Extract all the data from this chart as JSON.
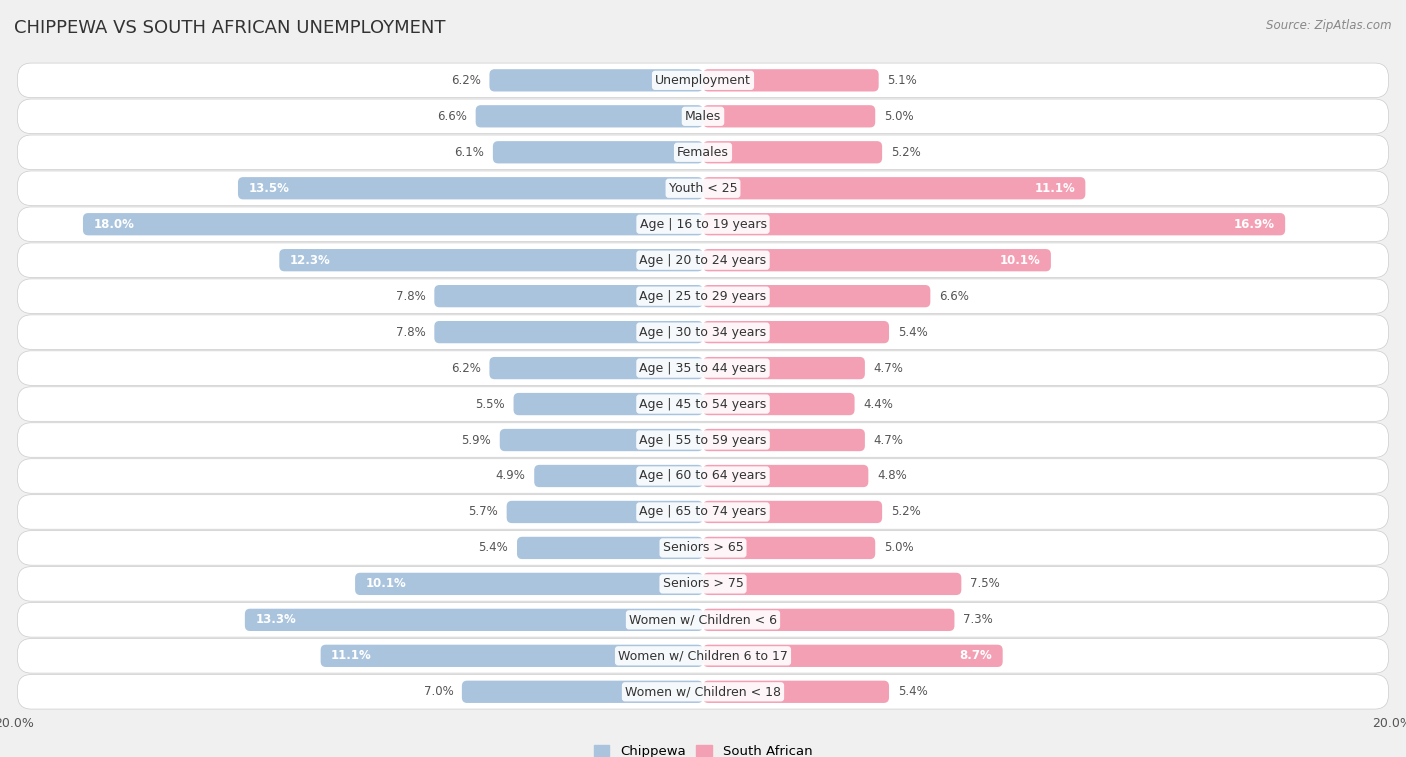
{
  "title": "CHIPPEWA VS SOUTH AFRICAN UNEMPLOYMENT",
  "source": "Source: ZipAtlas.com",
  "categories": [
    "Unemployment",
    "Males",
    "Females",
    "Youth < 25",
    "Age | 16 to 19 years",
    "Age | 20 to 24 years",
    "Age | 25 to 29 years",
    "Age | 30 to 34 years",
    "Age | 35 to 44 years",
    "Age | 45 to 54 years",
    "Age | 55 to 59 years",
    "Age | 60 to 64 years",
    "Age | 65 to 74 years",
    "Seniors > 65",
    "Seniors > 75",
    "Women w/ Children < 6",
    "Women w/ Children 6 to 17",
    "Women w/ Children < 18"
  ],
  "chippewa": [
    6.2,
    6.6,
    6.1,
    13.5,
    18.0,
    12.3,
    7.8,
    7.8,
    6.2,
    5.5,
    5.9,
    4.9,
    5.7,
    5.4,
    10.1,
    13.3,
    11.1,
    7.0
  ],
  "south_african": [
    5.1,
    5.0,
    5.2,
    11.1,
    16.9,
    10.1,
    6.6,
    5.4,
    4.7,
    4.4,
    4.7,
    4.8,
    5.2,
    5.0,
    7.5,
    7.3,
    8.7,
    5.4
  ],
  "max_val": 20.0,
  "chippewa_color": "#aac4de",
  "south_african_color": "#f4a0b4",
  "bg_color": "#f0f0f0",
  "bar_height": 0.62,
  "label_fontsize": 9.0,
  "value_fontsize": 8.5,
  "title_fontsize": 13,
  "inside_threshold": 8.5
}
